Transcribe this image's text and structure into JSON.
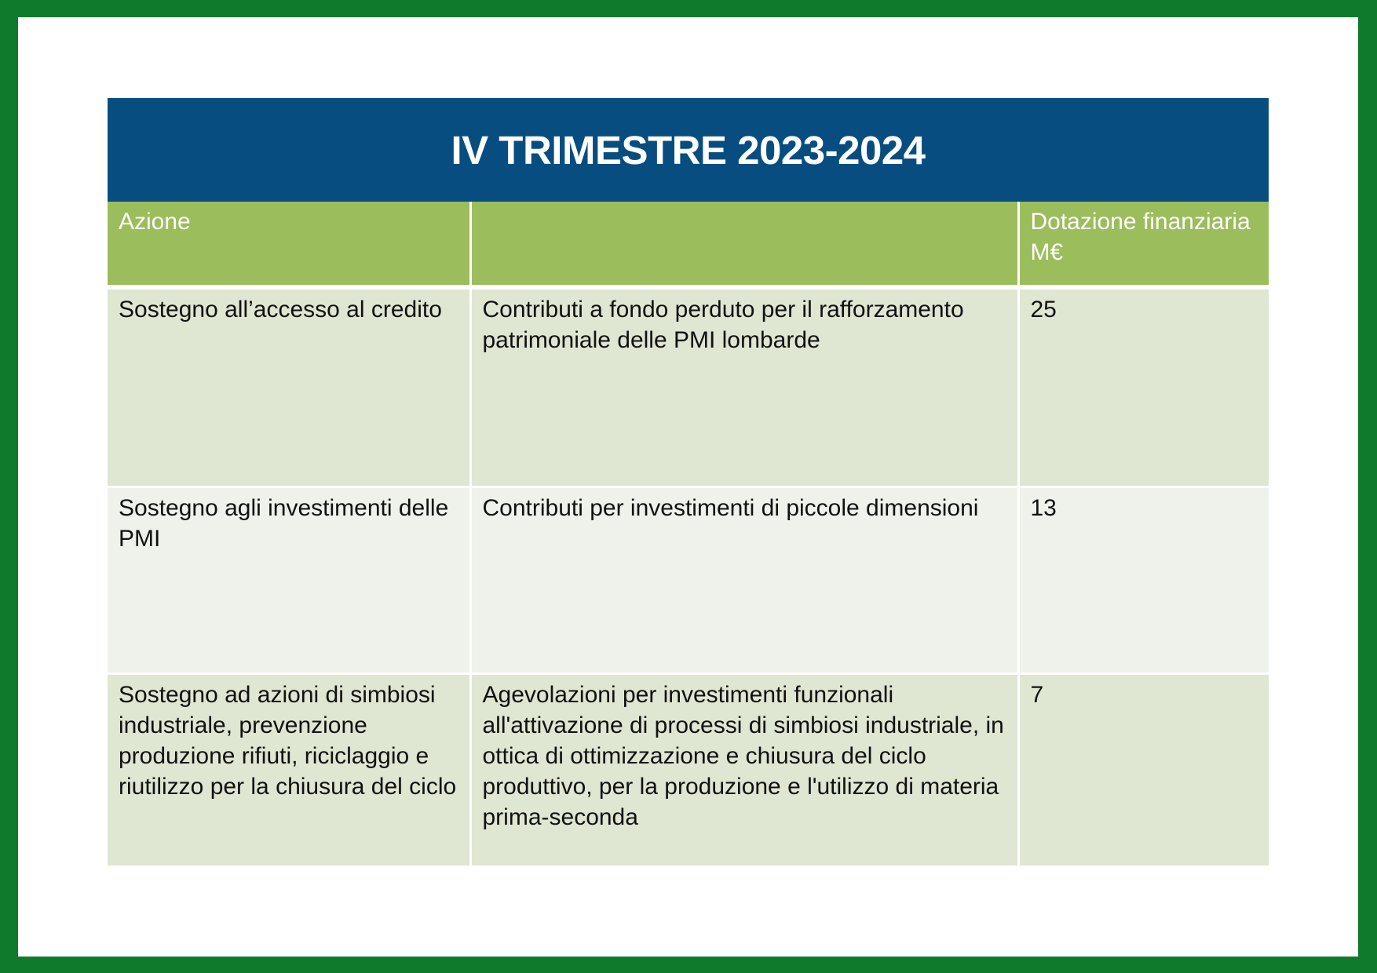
{
  "title": "IV TRIMESTRE 2023-2024",
  "colors": {
    "frame": "#0f7a2c",
    "title_bar": "#084d80",
    "header_row": "#9bbd5c",
    "row_odd": "#dfe6d2",
    "row_even": "#eff2ea"
  },
  "table": {
    "headers": [
      "Azione",
      "",
      "Dotazione finanziaria M€"
    ],
    "rows": [
      {
        "azione": "Sostegno all’accesso al credito",
        "descrizione": "Contributi a fondo perduto per il rafforzamento patrimoniale delle PMI lombarde",
        "dotazione": "25"
      },
      {
        "azione": "Sostegno agli investimenti delle PMI",
        "descrizione": "Contributi per investimenti di piccole dimensioni",
        "dotazione": "13"
      },
      {
        "azione": "Sostegno ad azioni di simbiosi industriale, prevenzione produzione rifiuti, riciclaggio e riutilizzo per la chiusura del ciclo",
        "descrizione": "Agevolazioni per investimenti funzionali all'attivazione di processi di simbiosi industriale, in ottica di ottimizzazione e chiusura del ciclo produttivo, per la produzione e l'utilizzo di materia prima-seconda",
        "dotazione": "7"
      }
    ]
  }
}
